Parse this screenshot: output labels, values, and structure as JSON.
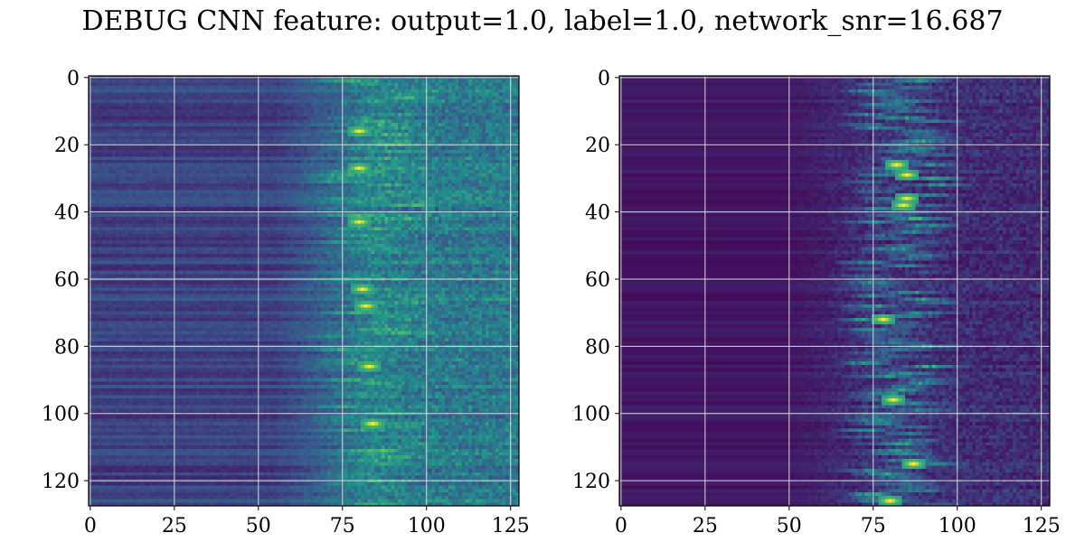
{
  "title": "DEBUG CNN feature: output=1.0, label=1.0, network_snr=16.687",
  "chart_data": [
    {
      "type": "heatmap",
      "rows": 128,
      "cols": 128,
      "colormap": "viridis",
      "grid": true,
      "x_ticks": [
        0,
        25,
        50,
        75,
        100,
        125
      ],
      "y_ticks": [
        0,
        20,
        40,
        60,
        80,
        100,
        120
      ],
      "x_tick_labels": [
        "0",
        "25",
        "50",
        "75",
        "100",
        "125"
      ],
      "y_tick_labels": [
        "0",
        "20",
        "40",
        "60",
        "80",
        "100",
        "120"
      ],
      "xlim": [
        -0.5,
        127.5
      ],
      "ylim": [
        127.5,
        -0.5
      ],
      "pattern": "left half uniform dark stripes, activation rising toward columns 75-90, hot spots near (81,63) and (81,68)",
      "hotspots": [
        [
          81,
          63
        ],
        [
          82,
          68
        ],
        [
          80,
          43
        ],
        [
          80,
          27
        ],
        [
          83,
          86
        ],
        [
          84,
          103
        ],
        [
          80,
          16
        ]
      ]
    },
    {
      "type": "heatmap",
      "rows": 128,
      "cols": 128,
      "colormap": "viridis",
      "grid": true,
      "x_ticks": [
        0,
        25,
        50,
        75,
        100,
        125
      ],
      "y_ticks": [
        0,
        20,
        40,
        60,
        80,
        100,
        120
      ],
      "x_tick_labels": [
        "0",
        "25",
        "50",
        "75",
        "100",
        "125"
      ],
      "y_tick_labels": [
        "0",
        "20",
        "40",
        "60",
        "80",
        "100",
        "120"
      ],
      "xlim": [
        -0.5,
        127.5
      ],
      "ylim": [
        127.5,
        -0.5
      ],
      "pattern": "mostly dark, scattered bright band around columns 70-95, hot spots near (85,36), (78,72), (81,96), (80,126)",
      "hotspots": [
        [
          85,
          36
        ],
        [
          84,
          38
        ],
        [
          78,
          72
        ],
        [
          81,
          96
        ],
        [
          80,
          126
        ],
        [
          87,
          115
        ],
        [
          85,
          29
        ],
        [
          82,
          26
        ]
      ]
    }
  ]
}
